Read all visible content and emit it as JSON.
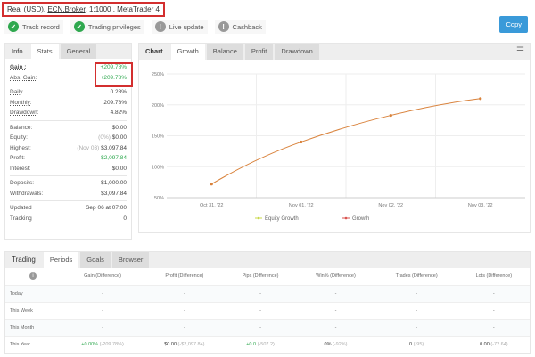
{
  "header": {
    "account": "Real (USD),",
    "broker": "ECN.Broker",
    "rest": ", 1:1000 , MetaTrader 4"
  },
  "badges": [
    {
      "label": "Track record",
      "icon": "check-icon"
    },
    {
      "label": "Trading privileges",
      "icon": "check-icon"
    },
    {
      "label": "Live update",
      "icon": "exclamation-icon"
    },
    {
      "label": "Cashback",
      "icon": "exclamation-icon"
    }
  ],
  "copy_label": "Copy",
  "left_tabs": [
    "Info",
    "Stats",
    "General"
  ],
  "stats": {
    "gain": {
      "label": "Gain :",
      "value": "+209.78%"
    },
    "abs_gain": {
      "label": "Abs. Gain:",
      "value": "+209.78%"
    },
    "daily": {
      "label": "Daily",
      "value": "0.28%"
    },
    "monthly": {
      "label": "Monthly:",
      "value": "209.78%"
    },
    "drawdown": {
      "label": "Drawdown:",
      "value": "4.82%"
    },
    "balance": {
      "label": "Balance:",
      "value": "$0.00"
    },
    "equity": {
      "label": "Equity:",
      "note": "(0%)",
      "value": "$0.00"
    },
    "highest": {
      "label": "Highest:",
      "note": "(Nov 03)",
      "value": "$3,097.84"
    },
    "profit": {
      "label": "Profit:",
      "value": "$2,097.84"
    },
    "interest": {
      "label": "Interest:",
      "value": "$0.00"
    },
    "deposits": {
      "label": "Deposits:",
      "value": "$1,000.00"
    },
    "withdrawals": {
      "label": "Withdrawals:",
      "value": "$3,097.84"
    },
    "updated": {
      "label": "Updated",
      "value": "Sep 06 at 07:00"
    },
    "tracking": {
      "label": "Tracking",
      "value": "0"
    }
  },
  "chart_tabs": [
    "Chart",
    "Growth",
    "Balance",
    "Profit",
    "Drawdown"
  ],
  "chart_data": {
    "type": "line",
    "categories": [
      "Oct 31, '22",
      "Nov 01, '22",
      "Nov 02, '22",
      "Nov 03, '22"
    ],
    "series": [
      {
        "name": "Growth",
        "values": [
          72,
          140,
          183,
          210
        ],
        "color": "#d9823b"
      }
    ],
    "legend": [
      "Equity Growth",
      "Growth"
    ],
    "legend_colors": [
      "#c8d84a",
      "#d9534f"
    ],
    "yticks": [
      "250%",
      "200%",
      "150%",
      "100%",
      "50%"
    ],
    "ylim": [
      50,
      250
    ],
    "grid": true,
    "legend_placement": "bottom"
  },
  "bottom_tabs": [
    "Trading",
    "Periods",
    "Goals",
    "Browser"
  ],
  "periods": {
    "headers": [
      "Gain (Difference)",
      "Profit (Difference)",
      "Pips (Difference)",
      "Win% (Difference)",
      "Trades (Difference)",
      "Lots (Difference)"
    ],
    "rows": [
      {
        "label": "Today",
        "cells": [
          [
            "-",
            ""
          ],
          [
            "-",
            ""
          ],
          [
            "-",
            ""
          ],
          [
            "-",
            ""
          ],
          [
            "-",
            ""
          ],
          [
            "-",
            ""
          ]
        ]
      },
      {
        "label": "This Week",
        "cells": [
          [
            "-",
            ""
          ],
          [
            "-",
            ""
          ],
          [
            "-",
            ""
          ],
          [
            "-",
            ""
          ],
          [
            "-",
            ""
          ],
          [
            "-",
            ""
          ]
        ]
      },
      {
        "label": "This Month",
        "cells": [
          [
            "-",
            ""
          ],
          [
            "-",
            ""
          ],
          [
            "-",
            ""
          ],
          [
            "-",
            ""
          ],
          [
            "-",
            ""
          ],
          [
            "-",
            ""
          ]
        ]
      },
      {
        "label": "This Year",
        "cells": [
          [
            "+0.00%",
            "(-209.78%)"
          ],
          [
            "$0.00",
            "(-$2,097.84)"
          ],
          [
            "+0.0",
            "(-507.2)"
          ],
          [
            "0%",
            "(-92%)"
          ],
          [
            "0",
            "(-95)"
          ],
          [
            "0.00",
            "(-72.64)"
          ]
        ]
      }
    ]
  }
}
